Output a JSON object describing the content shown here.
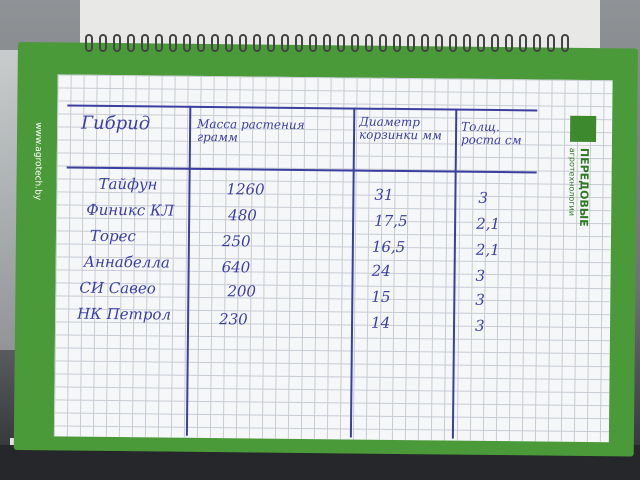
{
  "cover": {
    "side_url": "www.agrotech.by",
    "logo_title": "ПЕРЕДОВЫЕ",
    "logo_subtitle": "агротехнологии",
    "color": "#4a9a3a"
  },
  "table": {
    "headers": [
      "Гибрид",
      "Масса растения грамм",
      "Диаметр корзинки мм",
      "Толщ. роста см"
    ],
    "rows": [
      [
        "Тайфун",
        "1260",
        "31",
        "3"
      ],
      [
        "Финикс КЛ",
        "480",
        "17,5",
        "2,1"
      ],
      [
        "Торес",
        "250",
        "16,5",
        "2,1"
      ],
      [
        "Аннабелла",
        "640",
        "24",
        "3"
      ],
      [
        "СИ Савео",
        "200",
        "15",
        "3"
      ],
      [
        "НК Петрол",
        "230",
        "14",
        "3"
      ]
    ],
    "ink_color": "#3a3fa8"
  }
}
